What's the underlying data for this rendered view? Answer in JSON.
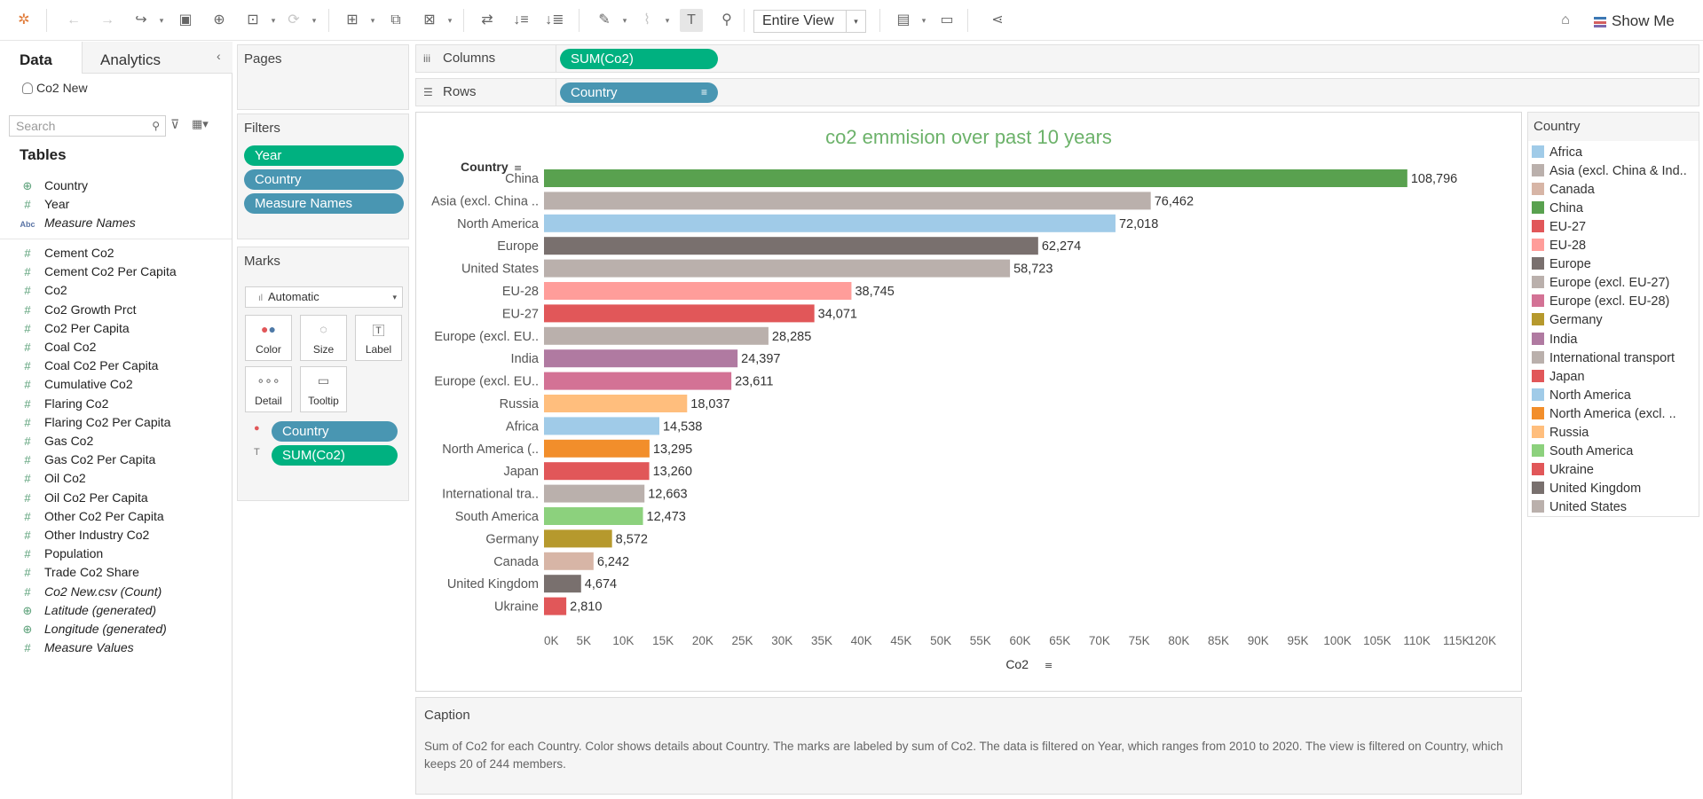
{
  "toolbar": {
    "fit_value": "Entire View",
    "show_me_label": "Show Me"
  },
  "data_pane": {
    "tab_data": "Data",
    "tab_analytics": "Analytics",
    "datasource": "Co2 New",
    "search_placeholder": "Search",
    "tables_heading": "Tables",
    "dimensions": [
      {
        "label": "Country",
        "icon": "globe-icon"
      },
      {
        "label": "Year",
        "icon": "hash-icon"
      },
      {
        "label": "Measure Names",
        "icon": "abc-icon"
      }
    ],
    "measures": [
      {
        "label": "Cement Co2",
        "icon": "hash-icon"
      },
      {
        "label": "Cement Co2 Per Capita",
        "icon": "hash-icon"
      },
      {
        "label": "Co2",
        "icon": "hash-icon"
      },
      {
        "label": "Co2 Growth Prct",
        "icon": "hash-icon"
      },
      {
        "label": "Co2 Per Capita",
        "icon": "hash-icon"
      },
      {
        "label": "Coal Co2",
        "icon": "hash-icon"
      },
      {
        "label": "Coal Co2 Per Capita",
        "icon": "hash-icon"
      },
      {
        "label": "Cumulative Co2",
        "icon": "hash-icon"
      },
      {
        "label": "Flaring Co2",
        "icon": "hash-icon"
      },
      {
        "label": "Flaring Co2 Per Capita",
        "icon": "hash-icon"
      },
      {
        "label": "Gas Co2",
        "icon": "hash-icon"
      },
      {
        "label": "Gas Co2 Per Capita",
        "icon": "hash-icon"
      },
      {
        "label": "Oil Co2",
        "icon": "hash-icon"
      },
      {
        "label": "Oil Co2 Per Capita",
        "icon": "hash-icon"
      },
      {
        "label": "Other Co2 Per Capita",
        "icon": "hash-icon"
      },
      {
        "label": "Other Industry Co2",
        "icon": "hash-icon"
      },
      {
        "label": "Population",
        "icon": "hash-icon"
      },
      {
        "label": "Trade Co2 Share",
        "icon": "hash-icon"
      },
      {
        "label": "Co2 New.csv (Count)",
        "icon": "hash-icon"
      },
      {
        "label": "Latitude (generated)",
        "icon": "globe-icon"
      },
      {
        "label": "Longitude (generated)",
        "icon": "globe-icon"
      },
      {
        "label": "Measure Values",
        "icon": "hash-icon"
      }
    ]
  },
  "pages": {
    "title": "Pages"
  },
  "filters": {
    "title": "Filters",
    "pills": [
      "Year",
      "Country",
      "Measure Names"
    ]
  },
  "marks": {
    "title": "Marks",
    "mark_type": "Automatic",
    "buttons": [
      "Color",
      "Size",
      "Label",
      "Detail",
      "Tooltip"
    ],
    "pills": [
      "Country",
      "SUM(Co2)"
    ]
  },
  "shelves": {
    "columns_label": "Columns",
    "columns_pill": "SUM(Co2)",
    "rows_label": "Rows",
    "rows_pill": "Country"
  },
  "caption": {
    "title": "Caption",
    "text": "Sum of Co2 for each Country.  Color shows details about Country.  The marks are labeled by sum of Co2. The data is filtered on Year, which ranges from 2010 to 2020. The view is filtered on Country, which keeps 20 of 244 members."
  },
  "legend": {
    "title": "Country",
    "items": [
      {
        "label": "Africa",
        "color": "#a0cbe8"
      },
      {
        "label": "Asia (excl. China & Ind..",
        "color": "#bab0ac"
      },
      {
        "label": "Canada",
        "color": "#d7b5a6"
      },
      {
        "label": "China",
        "color": "#59a14f"
      },
      {
        "label": "EU-27",
        "color": "#e15759"
      },
      {
        "label": "EU-28",
        "color": "#ff9d9a"
      },
      {
        "label": "Europe",
        "color": "#79706e"
      },
      {
        "label": "Europe (excl. EU-27)",
        "color": "#bab0ac"
      },
      {
        "label": "Europe (excl. EU-28)",
        "color": "#d37295"
      },
      {
        "label": "Germany",
        "color": "#b6992d"
      },
      {
        "label": "India",
        "color": "#b07aa1"
      },
      {
        "label": "International transport",
        "color": "#bab0ac"
      },
      {
        "label": "Japan",
        "color": "#e15759"
      },
      {
        "label": "North America",
        "color": "#a0cbe8"
      },
      {
        "label": "North America (excl. ..",
        "color": "#f28e2b"
      },
      {
        "label": "Russia",
        "color": "#ffbe7d"
      },
      {
        "label": "South America",
        "color": "#8cd17d"
      },
      {
        "label": "Ukraine",
        "color": "#e15759"
      },
      {
        "label": "United Kingdom",
        "color": "#79706e"
      },
      {
        "label": "United States",
        "color": "#bab0ac"
      }
    ]
  },
  "chart_data": {
    "type": "bar",
    "orientation": "horizontal",
    "title": "co2 emmision over past 10 years",
    "xlabel": "Co2",
    "ylabel": "Country",
    "xlim": [
      0,
      120000
    ],
    "x_ticks": [
      "0K",
      "5K",
      "10K",
      "15K",
      "20K",
      "25K",
      "30K",
      "35K",
      "40K",
      "45K",
      "50K",
      "55K",
      "60K",
      "65K",
      "70K",
      "75K",
      "80K",
      "85K",
      "90K",
      "95K",
      "100K",
      "105K",
      "110K",
      "115K",
      "120K"
    ],
    "grid": false,
    "categories": [
      "China",
      "Asia (excl. China ..",
      "North America",
      "Europe",
      "United States",
      "EU-28",
      "EU-27",
      "Europe (excl. EU..",
      "India",
      "Europe (excl. EU..",
      "Russia",
      "Africa",
      "North America (..",
      "Japan",
      "International tra..",
      "South America",
      "Germany",
      "Canada",
      "United Kingdom",
      "Ukraine"
    ],
    "values": [
      108796,
      76462,
      72018,
      62274,
      58723,
      38745,
      34071,
      28285,
      24397,
      23611,
      18037,
      14538,
      13295,
      13260,
      12663,
      12473,
      8572,
      6242,
      4674,
      2810
    ],
    "value_labels": [
      "108,796",
      "76,462",
      "72,018",
      "62,274",
      "58,723",
      "38,745",
      "34,071",
      "28,285",
      "24,397",
      "23,611",
      "18,037",
      "14,538",
      "13,295",
      "13,260",
      "12,663",
      "12,473",
      "8,572",
      "6,242",
      "4,674",
      "2,810"
    ],
    "colors": [
      "#59a14f",
      "#bab0ac",
      "#a0cbe8",
      "#79706e",
      "#bab0ac",
      "#ff9d9a",
      "#e15759",
      "#bab0ac",
      "#b07aa1",
      "#d37295",
      "#ffbe7d",
      "#a0cbe8",
      "#f28e2b",
      "#e15759",
      "#bab0ac",
      "#8cd17d",
      "#b6992d",
      "#d7b5a6",
      "#79706e",
      "#e15759"
    ]
  }
}
